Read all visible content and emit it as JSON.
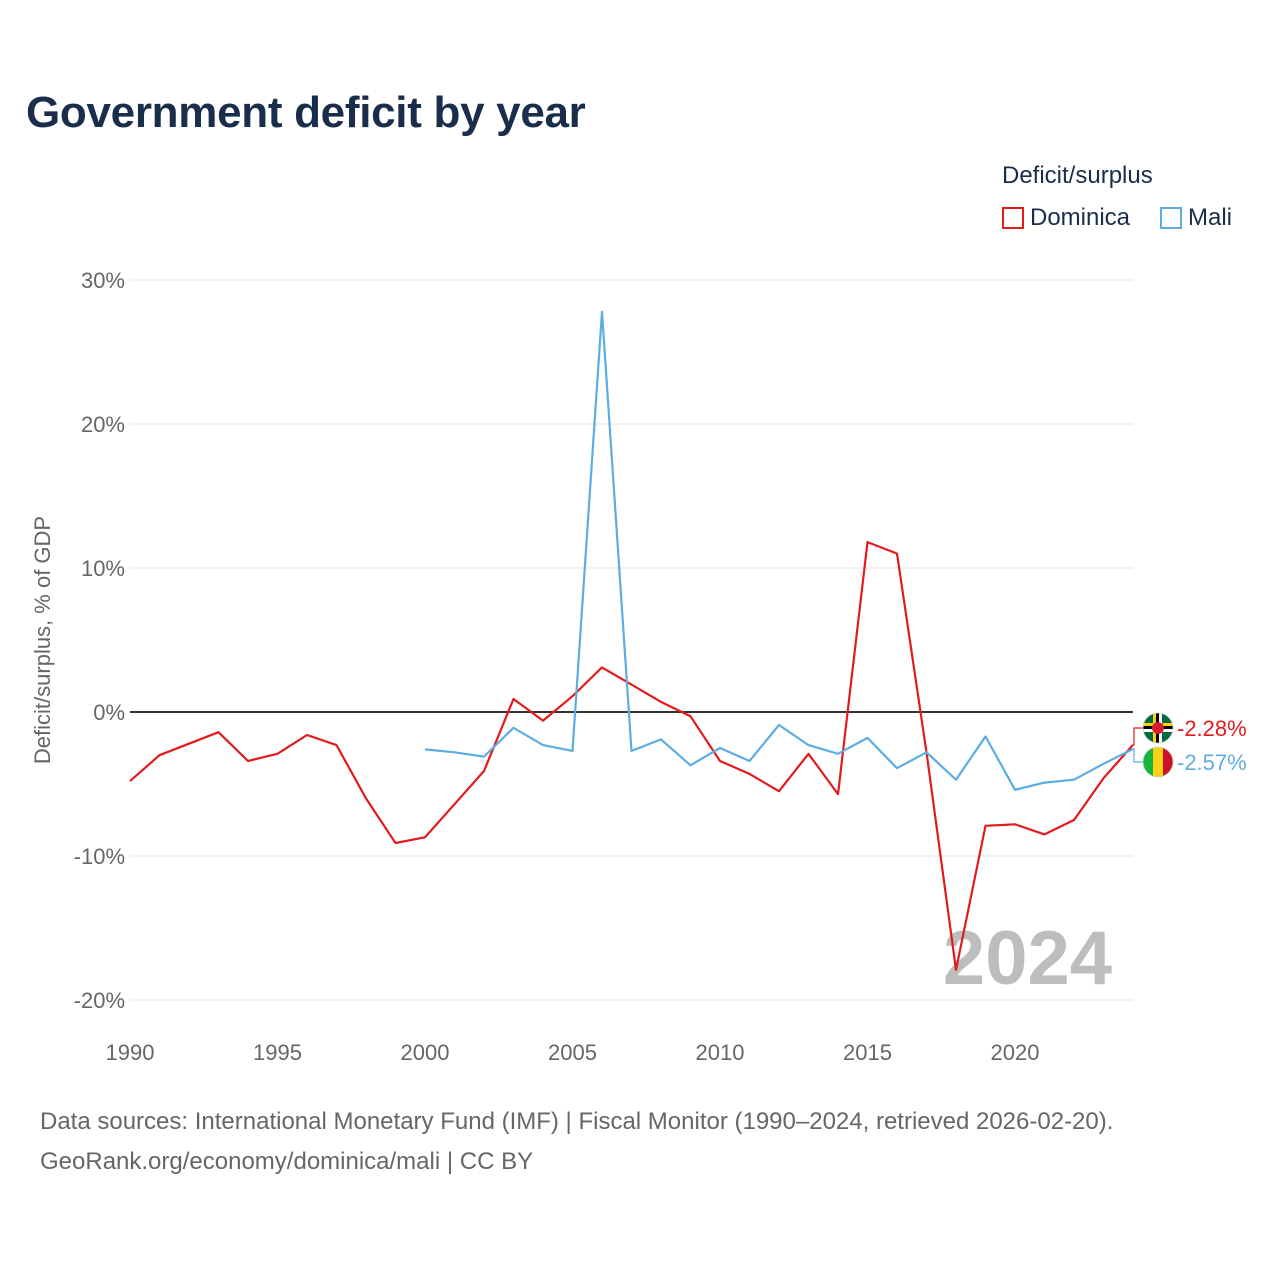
{
  "title": "Government deficit by year",
  "legend": {
    "title": "Deficit/surplus",
    "items": [
      {
        "label": "Dominica",
        "color": "#e31a1c"
      },
      {
        "label": "Mali",
        "color": "#5dade2"
      }
    ]
  },
  "footer": {
    "line1": "Data sources: International Monetary Fund (IMF) | Fiscal Monitor (1990–2024, retrieved 2026-02-20).",
    "line2": "GeoRank.org/economy/dominica/mali | CC BY"
  },
  "chart_data": {
    "type": "line",
    "title": "Government deficit by year",
    "xlabel": "",
    "ylabel": "Deficit/surplus, % of GDP",
    "xlim": [
      1990,
      2024
    ],
    "ylim": [
      -20,
      30
    ],
    "x_ticks": [
      1990,
      1995,
      2000,
      2005,
      2010,
      2015,
      2020
    ],
    "y_ticks": [
      -20,
      -10,
      0,
      10,
      20,
      30
    ],
    "y_tick_labels": [
      "-20%",
      "-10%",
      "0%",
      "10%",
      "20%",
      "30%"
    ],
    "x_tick_labels": [
      "1990",
      "1995",
      "2000",
      "2005",
      "2010",
      "2015",
      "2020"
    ],
    "year_watermark": "2024",
    "series": [
      {
        "name": "Dominica",
        "color": "#e31a1c",
        "end_label": "-2.28%",
        "flag_icon": "dominica-flag-icon",
        "x": [
          1990,
          1991,
          1992,
          1993,
          1994,
          1995,
          1996,
          1997,
          1998,
          1999,
          2000,
          2001,
          2002,
          2003,
          2004,
          2005,
          2006,
          2007,
          2008,
          2009,
          2010,
          2011,
          2012,
          2013,
          2014,
          2015,
          2016,
          2017,
          2018,
          2019,
          2020,
          2021,
          2022,
          2023,
          2024
        ],
        "y": [
          -4.8,
          -3.0,
          -2.2,
          -1.4,
          -3.4,
          -2.9,
          -1.6,
          -2.3,
          -6.0,
          -9.1,
          -8.7,
          -6.4,
          -4.1,
          0.9,
          -0.6,
          1.1,
          3.1,
          1.9,
          0.7,
          -0.3,
          -3.4,
          -4.3,
          -5.5,
          -2.9,
          -5.7,
          11.8,
          11.0,
          -2.8,
          -17.9,
          -7.9,
          -7.8,
          -8.5,
          -7.5,
          -4.6,
          -2.28
        ]
      },
      {
        "name": "Mali",
        "color": "#5dade2",
        "end_label": "-2.57%",
        "flag_icon": "mali-flag-icon",
        "x": [
          2000,
          2001,
          2002,
          2003,
          2004,
          2005,
          2006,
          2007,
          2008,
          2009,
          2010,
          2011,
          2012,
          2013,
          2014,
          2015,
          2016,
          2017,
          2018,
          2019,
          2020,
          2021,
          2022,
          2023,
          2024
        ],
        "y": [
          -2.6,
          -2.8,
          -3.1,
          -1.1,
          -2.3,
          -2.7,
          27.8,
          -2.7,
          -1.9,
          -3.7,
          -2.5,
          -3.4,
          -0.9,
          -2.3,
          -2.9,
          -1.8,
          -3.9,
          -2.8,
          -4.7,
          -1.7,
          -5.4,
          -4.9,
          -4.7,
          -3.6,
          -2.57
        ]
      }
    ]
  }
}
